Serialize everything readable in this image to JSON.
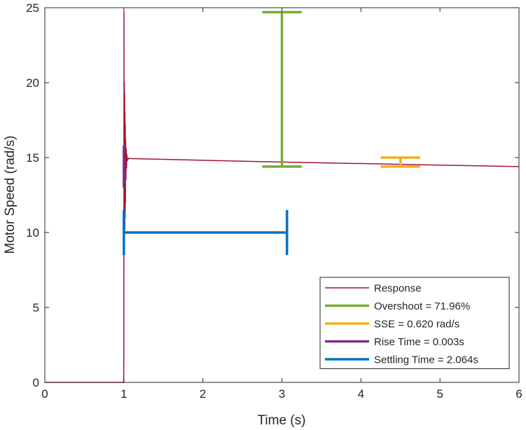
{
  "chart_data": {
    "type": "line",
    "title": "",
    "xlabel": "Time (s)",
    "ylabel": "Motor Speed (rad/s)",
    "xlim": [
      0,
      6
    ],
    "ylim": [
      0,
      25
    ],
    "xticks": [
      "0",
      "1",
      "2",
      "3",
      "4",
      "5",
      "6"
    ],
    "yticks": [
      "0",
      "5",
      "10",
      "15",
      "20",
      "25"
    ],
    "grid": false,
    "legend_position": "bottom-right",
    "series": [
      {
        "name": "Response",
        "color": "#A2142F",
        "x": [
          0,
          0.998,
          1.0,
          1.002,
          1.004,
          1.006,
          1.008,
          1.01,
          1.012,
          1.014,
          1.016,
          1.018,
          1.02,
          1.023,
          1.026,
          1.03,
          1.034,
          1.038,
          1.045,
          1.06,
          1.1,
          2,
          3,
          4,
          5,
          6
        ],
        "y": [
          0,
          0,
          2,
          24.7,
          8.5,
          20,
          9.5,
          19.3,
          10.2,
          18,
          11,
          17.2,
          12,
          16.2,
          13.5,
          15.6,
          14.3,
          15.2,
          14.8,
          14.95,
          14.93,
          14.82,
          14.7,
          14.6,
          14.5,
          14.4
        ]
      }
    ],
    "annotations": [
      {
        "name": "Overshoot = 71.96%",
        "color": "#77AC30",
        "orientation": "vertical",
        "position": 3.0,
        "from": 14.4,
        "to": 24.7
      },
      {
        "name": "SSE = 0.620 rad/s",
        "color": "#EDB120",
        "orientation": "vertical",
        "position": 4.5,
        "from": 14.4,
        "to": 15.0
      },
      {
        "name": "Rise Time = 0.003s",
        "color": "#7E2F8E",
        "orientation": "vertical",
        "position": 1.0,
        "from": 13.0,
        "to": 15.8
      },
      {
        "name": "Settling Time = 2.064s",
        "color": "#0072BD",
        "orientation": "horizontal",
        "position": 10.0,
        "from": 1.0,
        "to": 3.064
      }
    ]
  }
}
